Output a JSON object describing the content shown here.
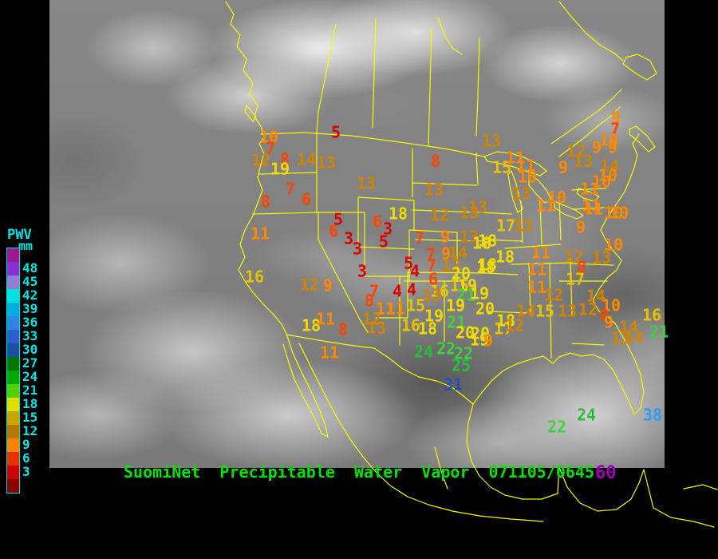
{
  "legend": {
    "title": "PWV",
    "unit": "mm",
    "text_color": "#00E5E5",
    "entries": [
      {
        "label": "",
        "color": "#A01690"
      },
      {
        "label": "48",
        "color": "#8C2FD0"
      },
      {
        "label": "45",
        "color": "#8F7FD0"
      },
      {
        "label": "42",
        "color": "#00E0E0"
      },
      {
        "label": "39",
        "color": "#00AEE0"
      },
      {
        "label": "36",
        "color": "#2E86E0"
      },
      {
        "label": "33",
        "color": "#2B5FCC"
      },
      {
        "label": "30",
        "color": "#1C4FA0"
      },
      {
        "label": "27",
        "color": "#007800"
      },
      {
        "label": "24",
        "color": "#00A800"
      },
      {
        "label": "21",
        "color": "#52D000"
      },
      {
        "label": "18",
        "color": "#E0E000"
      },
      {
        "label": "15",
        "color": "#C8A800"
      },
      {
        "label": "12",
        "color": "#B87800"
      },
      {
        "label": "9",
        "color": "#FF8200"
      },
      {
        "label": "6",
        "color": "#E83000"
      },
      {
        "label": "3",
        "color": "#D00000"
      },
      {
        "label": "",
        "color": "#880000"
      }
    ]
  },
  "footer": {
    "title": "SuomiNet  Precipitable  Water  Vapor  071105/0645",
    "title_color": "#00E400",
    "suffix": "60",
    "suffix_color": "#A000B4"
  },
  "value_colors": [
    {
      "min": 36,
      "color": "#2E9BFF"
    },
    {
      "min": 30,
      "color": "#2350C0"
    },
    {
      "min": 27,
      "color": "#00A651"
    },
    {
      "min": 24,
      "color": "#28BE3C"
    },
    {
      "min": 21,
      "color": "#3FD23C"
    },
    {
      "min": 18,
      "color": "#F2DC00"
    },
    {
      "min": 15,
      "color": "#E8C400"
    },
    {
      "min": 12,
      "color": "#D28400"
    },
    {
      "min": 9,
      "color": "#FF8800"
    },
    {
      "min": 6,
      "color": "#FF4400"
    },
    {
      "min": 0,
      "color": "#DC0000"
    }
  ],
  "stations": [
    [
      5,
      421,
      166
    ],
    [
      10,
      337,
      172
    ],
    [
      7,
      339,
      186
    ],
    [
      12,
      327,
      201
    ],
    [
      8,
      357,
      200
    ],
    [
      14,
      384,
      200
    ],
    [
      13,
      409,
      204
    ],
    [
      19,
      351,
      212
    ],
    [
      7,
      364,
      237
    ],
    [
      6,
      384,
      250
    ],
    [
      8,
      333,
      253
    ],
    [
      13,
      459,
      230
    ],
    [
      8,
      546,
      202
    ],
    [
      13,
      616,
      177
    ],
    [
      15,
      629,
      210
    ],
    [
      11,
      646,
      198
    ],
    [
      13,
      544,
      238
    ],
    [
      12,
      551,
      270
    ],
    [
      18,
      499,
      268
    ],
    [
      13,
      588,
      267
    ],
    [
      13,
      599,
      260
    ],
    [
      9,
      772,
      148
    ],
    [
      7,
      771,
      162
    ],
    [
      10,
      763,
      176
    ],
    [
      9,
      748,
      185
    ],
    [
      9,
      768,
      185
    ],
    [
      12,
      722,
      190
    ],
    [
      13,
      731,
      202
    ],
    [
      11,
      659,
      208
    ],
    [
      9,
      706,
      210
    ],
    [
      14,
      764,
      208
    ],
    [
      10,
      661,
      222
    ],
    [
      10,
      762,
      220
    ],
    [
      10,
      754,
      228
    ],
    [
      13,
      653,
      243
    ],
    [
      10,
      698,
      248
    ],
    [
      11,
      739,
      237
    ],
    [
      11,
      741,
      258
    ],
    [
      11,
      684,
      258
    ],
    [
      10,
      769,
      267
    ],
    [
      11,
      744,
      262
    ],
    [
      10,
      776,
      267
    ],
    [
      11,
      326,
      293
    ],
    [
      16,
      319,
      347
    ],
    [
      12,
      388,
      357
    ],
    [
      9,
      411,
      358
    ],
    [
      5,
      424,
      275
    ],
    [
      6,
      418,
      290
    ],
    [
      3,
      437,
      299
    ],
    [
      6,
      473,
      278
    ],
    [
      3,
      486,
      287
    ],
    [
      5,
      481,
      303
    ],
    [
      3,
      448,
      312
    ],
    [
      5,
      512,
      330
    ],
    [
      3,
      454,
      340
    ],
    [
      4,
      520,
      340
    ],
    [
      7,
      541,
      333
    ],
    [
      12,
      566,
      333
    ],
    [
      6,
      543,
      350
    ],
    [
      7,
      469,
      365
    ],
    [
      4,
      498,
      365
    ],
    [
      4,
      516,
      363
    ],
    [
      8,
      463,
      377
    ],
    [
      11,
      483,
      387
    ],
    [
      11,
      496,
      387
    ],
    [
      18,
      390,
      408
    ],
    [
      11,
      408,
      400
    ],
    [
      12,
      466,
      400
    ],
    [
      13,
      472,
      411
    ],
    [
      8,
      430,
      413
    ],
    [
      11,
      413,
      442
    ],
    [
      17,
      634,
      283
    ],
    [
      13,
      656,
      283
    ],
    [
      7,
      526,
      298
    ],
    [
      9,
      558,
      297
    ],
    [
      13,
      588,
      297
    ],
    [
      18,
      604,
      305
    ],
    [
      7,
      540,
      319
    ],
    [
      9,
      559,
      318
    ],
    [
      14,
      574,
      317
    ],
    [
      18,
      633,
      322
    ],
    [
      11,
      678,
      317
    ],
    [
      18,
      609,
      335
    ],
    [
      20,
      578,
      343
    ],
    [
      16,
      551,
      365
    ],
    [
      15,
      576,
      358
    ],
    [
      19,
      586,
      358
    ],
    [
      21,
      584,
      370
    ],
    [
      19,
      601,
      368
    ],
    [
      13,
      541,
      370
    ],
    [
      15,
      521,
      383
    ],
    [
      19,
      571,
      383
    ],
    [
      20,
      608,
      387
    ],
    [
      19,
      544,
      396
    ],
    [
      16,
      515,
      408
    ],
    [
      18,
      536,
      412
    ],
    [
      21,
      572,
      404
    ],
    [
      20,
      583,
      417
    ],
    [
      20,
      602,
      418
    ],
    [
      17,
      631,
      412
    ],
    [
      18,
      634,
      402
    ],
    [
      12,
      645,
      408
    ],
    [
      14,
      659,
      390
    ],
    [
      15,
      683,
      390
    ],
    [
      13,
      711,
      390
    ],
    [
      19,
      601,
      426
    ],
    [
      9,
      612,
      427
    ],
    [
      9,
      728,
      285
    ],
    [
      18,
      611,
      302
    ],
    [
      12,
      719,
      322
    ],
    [
      13,
      754,
      323
    ],
    [
      8,
      729,
      335
    ],
    [
      18,
      611,
      332
    ],
    [
      11,
      673,
      338
    ],
    [
      17,
      721,
      350
    ],
    [
      11,
      673,
      360
    ],
    [
      12,
      694,
      370
    ],
    [
      14,
      747,
      371
    ],
    [
      10,
      766,
      383
    ],
    [
      12,
      737,
      388
    ],
    [
      8,
      757,
      395
    ],
    [
      9,
      763,
      404
    ],
    [
      10,
      769,
      307
    ],
    [
      16,
      817,
      395
    ],
    [
      14,
      788,
      410
    ],
    [
      14,
      795,
      423
    ],
    [
      13,
      778,
      424
    ],
    [
      21,
      826,
      416
    ],
    [
      24,
      531,
      441
    ],
    [
      22,
      559,
      437
    ],
    [
      22,
      581,
      443
    ],
    [
      25,
      578,
      458
    ],
    [
      31,
      568,
      482
    ],
    [
      22,
      698,
      535
    ],
    [
      24,
      735,
      520
    ],
    [
      38,
      818,
      520
    ]
  ]
}
